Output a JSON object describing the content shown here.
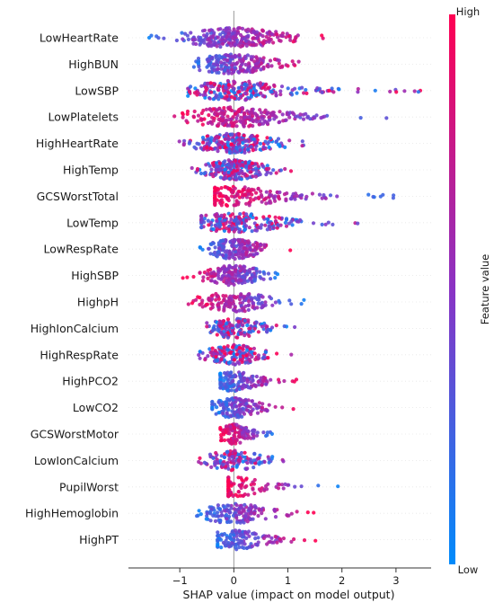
{
  "chart_data": {
    "type": "scatter",
    "subtype": "shap-beeswarm",
    "xlabel": "SHAP value (impact on model output)",
    "xlim": [
      -1.95,
      3.65
    ],
    "x_ticks": [
      -1,
      0,
      1,
      2,
      3
    ],
    "x_tick_labels": [
      "−1",
      "0",
      "1",
      "2",
      "3"
    ],
    "zero_line": true,
    "colorbar": {
      "label": "Feature value",
      "high_label": "High",
      "low_label": "Low",
      "high_color": "#ff0052",
      "low_color": "#008bfb"
    },
    "features": [
      {
        "name": "LowHeartRate",
        "min": -1.75,
        "max": 1.9,
        "high_side": "right",
        "density": 1.0
      },
      {
        "name": "HighBUN",
        "min": -0.95,
        "max": 1.55,
        "high_side": "right",
        "density": 0.8
      },
      {
        "name": "LowSBP",
        "min": -0.85,
        "max": 3.55,
        "high_side": "mixed",
        "density": 0.9
      },
      {
        "name": "LowPlatelets",
        "min": -1.1,
        "max": 3.15,
        "high_side": "left",
        "density": 0.9
      },
      {
        "name": "HighHeartRate",
        "min": -1.05,
        "max": 1.6,
        "high_side": "mixed",
        "density": 0.9
      },
      {
        "name": "HighTemp",
        "min": -0.8,
        "max": 1.15,
        "high_side": "mixed",
        "density": 0.9
      },
      {
        "name": "GCSWorstTotal",
        "min": -0.35,
        "max": 3.1,
        "high_side": "left",
        "density": 0.7
      },
      {
        "name": "LowTemp",
        "min": -0.6,
        "max": 2.3,
        "high_side": "mixed",
        "density": 0.8
      },
      {
        "name": "LowRespRate",
        "min": -0.65,
        "max": 1.1,
        "high_side": "right",
        "density": 0.7
      },
      {
        "name": "HighSBP",
        "min": -0.95,
        "max": 1.05,
        "high_side": "left",
        "density": 0.7
      },
      {
        "name": "HighpH",
        "min": -0.85,
        "max": 1.35,
        "high_side": "left",
        "density": 0.6
      },
      {
        "name": "HighIonCalcium",
        "min": -0.5,
        "max": 1.35,
        "high_side": "mixed",
        "density": 0.6
      },
      {
        "name": "HighRespRate",
        "min": -0.65,
        "max": 1.1,
        "high_side": "mixed",
        "density": 0.6
      },
      {
        "name": "HighPCO2",
        "min": -0.25,
        "max": 1.25,
        "high_side": "right",
        "density": 0.6
      },
      {
        "name": "LowCO2",
        "min": -0.4,
        "max": 1.2,
        "high_side": "right",
        "density": 0.6
      },
      {
        "name": "GCSWorstMotor",
        "min": -0.25,
        "max": 0.8,
        "high_side": "left",
        "density": 0.5
      },
      {
        "name": "LowIonCalcium",
        "min": -0.65,
        "max": 1.3,
        "high_side": "mixed",
        "density": 0.5
      },
      {
        "name": "PupilWorst",
        "min": -0.1,
        "max": 2.05,
        "high_side": "left",
        "density": 0.4
      },
      {
        "name": "HighHemoglobin",
        "min": -0.75,
        "max": 1.55,
        "high_side": "right",
        "density": 0.6
      },
      {
        "name": "HighPT",
        "min": -0.3,
        "max": 1.6,
        "high_side": "right",
        "density": 0.5
      }
    ]
  }
}
